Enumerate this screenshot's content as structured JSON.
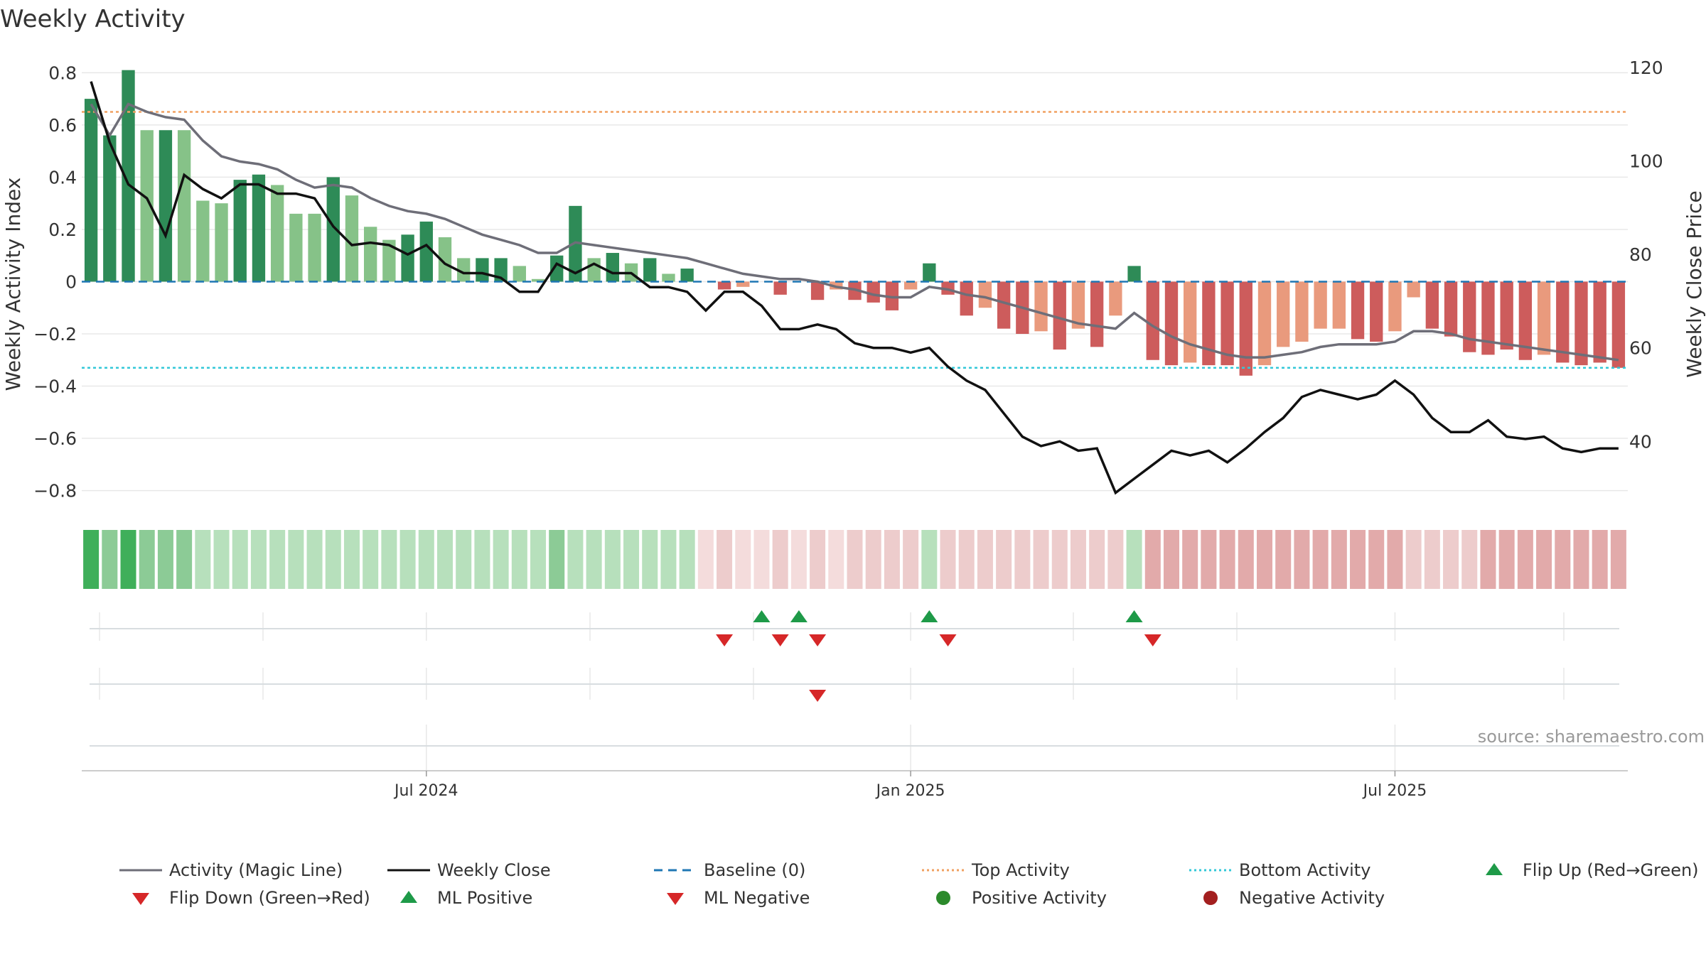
{
  "chart_data": {
    "type": "bar",
    "title": "Weekly Activity",
    "ylabel": "Weekly Activity Index",
    "y2label": "Weekly Close Price",
    "ylim": [
      -0.88,
      0.82
    ],
    "y2lim": [
      25,
      120
    ],
    "yticks": [
      0.8,
      0.6,
      0.4,
      0.2,
      0,
      -0.2,
      -0.4,
      -0.6,
      -0.8
    ],
    "ytick_labels": [
      "0.8",
      "0.6",
      "0.4",
      "0.2",
      "0",
      "−0.2",
      "−0.4",
      "−0.6",
      "−0.8"
    ],
    "y2ticks": [
      120,
      100,
      80,
      60,
      40
    ],
    "y2tick_labels": [
      "120",
      "100",
      "80",
      "60",
      "40"
    ],
    "xtick_labels": [
      {
        "label": "Jul 2024",
        "week": 18
      },
      {
        "label": "Jan 2025",
        "week": 44
      },
      {
        "label": "Jul 2025",
        "week": 70
      }
    ],
    "weeks": 83,
    "activity": [
      0.7,
      0.56,
      0.81,
      0.58,
      0.58,
      0.58,
      0.31,
      0.3,
      0.39,
      0.41,
      0.37,
      0.26,
      0.26,
      0.4,
      0.33,
      0.21,
      0.16,
      0.18,
      0.23,
      0.17,
      0.09,
      0.09,
      0.09,
      0.06,
      0.01,
      0.1,
      0.29,
      0.09,
      0.11,
      0.07,
      0.09,
      0.03,
      0.05,
      0,
      -0.03,
      -0.02,
      0,
      -0.05,
      0,
      -0.07,
      -0.03,
      -0.07,
      -0.08,
      -0.11,
      -0.03,
      0.07,
      -0.05,
      -0.13,
      -0.1,
      -0.18,
      -0.2,
      -0.19,
      -0.26,
      -0.18,
      -0.25,
      -0.13,
      0.06,
      -0.3,
      -0.32,
      -0.31,
      -0.32,
      -0.32,
      -0.36,
      -0.32,
      -0.25,
      -0.23,
      -0.18,
      -0.18,
      -0.22,
      -0.23,
      -0.19,
      -0.06,
      -0.18,
      -0.21,
      -0.27,
      -0.28,
      -0.26,
      -0.3,
      -0.28,
      -0.31,
      -0.32,
      -0.31,
      -0.33
    ],
    "activity_strength": [
      3,
      2,
      3,
      1,
      3,
      1,
      1,
      1,
      3,
      3,
      1,
      1,
      1,
      3,
      1,
      1,
      1,
      3,
      3,
      1,
      1,
      3,
      3,
      1,
      1,
      3,
      3,
      1,
      3,
      1,
      3,
      1,
      3,
      0,
      3,
      1,
      0,
      3,
      0,
      3,
      1,
      3,
      3,
      3,
      1,
      3,
      3,
      3,
      1,
      3,
      3,
      1,
      3,
      1,
      3,
      1,
      3,
      3,
      3,
      1,
      3,
      3,
      3,
      1,
      1,
      1,
      1,
      1,
      3,
      3,
      1,
      1,
      3,
      3,
      3,
      3,
      3,
      3,
      1,
      3,
      3,
      3,
      3
    ],
    "activity_line": [
      0.68,
      0.56,
      0.68,
      0.65,
      0.63,
      0.62,
      0.54,
      0.48,
      0.46,
      0.45,
      0.43,
      0.39,
      0.36,
      0.37,
      0.36,
      0.32,
      0.29,
      0.27,
      0.26,
      0.24,
      0.21,
      0.18,
      0.16,
      0.14,
      0.11,
      0.11,
      0.15,
      0.14,
      0.13,
      0.12,
      0.11,
      0.1,
      0.09,
      0.07,
      0.05,
      0.03,
      0.02,
      0.01,
      0.01,
      0,
      -0.02,
      -0.03,
      -0.05,
      -0.06,
      -0.06,
      -0.02,
      -0.03,
      -0.05,
      -0.06,
      -0.08,
      -0.1,
      -0.12,
      -0.14,
      -0.16,
      -0.17,
      -0.18,
      -0.12,
      -0.17,
      -0.21,
      -0.24,
      -0.26,
      -0.28,
      -0.29,
      -0.29,
      -0.28,
      -0.27,
      -0.25,
      -0.24,
      -0.24,
      -0.24,
      -0.23,
      -0.19,
      -0.19,
      -0.2,
      -0.22,
      -0.23,
      -0.24,
      -0.25,
      -0.26,
      -0.27,
      -0.28,
      -0.29,
      -0.3
    ],
    "weekly_close": [
      117,
      104,
      95,
      92,
      84,
      97,
      94,
      92,
      95,
      95,
      93,
      93,
      92,
      86,
      82,
      82.5,
      82,
      80,
      82,
      78,
      76,
      76,
      75,
      72,
      72,
      78,
      76,
      78,
      76,
      76,
      73,
      73,
      72,
      68,
      72,
      72,
      69,
      64,
      64,
      65,
      64,
      61,
      60,
      60,
      59,
      60,
      56,
      53,
      51,
      46,
      41,
      39,
      40,
      38,
      38.5,
      29,
      32,
      35,
      38,
      37,
      38,
      35.5,
      38.5,
      42,
      45,
      49.5,
      51,
      50,
      49,
      50,
      53,
      50,
      45,
      42,
      42,
      44.5,
      41,
      40.5,
      41,
      38.5,
      37.7,
      38.5,
      38.5
    ],
    "heat_strength": [
      3,
      2,
      3,
      2,
      2,
      2,
      1,
      1,
      1,
      1,
      1,
      1,
      1,
      1,
      1,
      1,
      1,
      1,
      1,
      1,
      1,
      1,
      1,
      1,
      1,
      2,
      1,
      1,
      1,
      1,
      1,
      1,
      1,
      0,
      1,
      0,
      0,
      1,
      0,
      1,
      0,
      1,
      1,
      1,
      1,
      1,
      1,
      1,
      1,
      1,
      1,
      1,
      1,
      1,
      1,
      1,
      1,
      2,
      2,
      2,
      2,
      2,
      2,
      2,
      2,
      2,
      2,
      2,
      2,
      2,
      2,
      1,
      1,
      1,
      1,
      2,
      2,
      2,
      2,
      2,
      2,
      2,
      2
    ],
    "top_activity": 0.65,
    "bottom_activity": -0.33,
    "baseline": 0,
    "flip_up_weeks": [
      36,
      38,
      45,
      56
    ],
    "flip_down_weeks": [
      34,
      37,
      39,
      46,
      57
    ],
    "ml_negative_weeks": [
      39
    ],
    "source": "source: sharemaestro.com",
    "legend": [
      {
        "label": "Activity (Magic Line)",
        "kind": "line",
        "color": "#6e6e78",
        "dash": ""
      },
      {
        "label": "Weekly Close",
        "kind": "line",
        "color": "#111111",
        "dash": ""
      },
      {
        "label": "Baseline (0)",
        "kind": "line",
        "color": "#1f77b4",
        "dash": "12 8"
      },
      {
        "label": "Top Activity",
        "kind": "line",
        "color": "#f0a060",
        "dash": "3 4"
      },
      {
        "label": "Bottom Activity",
        "kind": "line",
        "color": "#33c8d8",
        "dash": "3 4"
      },
      {
        "label": "Flip Up (Red→Green)",
        "kind": "tri-up",
        "color": "#1e9a48"
      },
      {
        "label": "Flip Down (Green→Red)",
        "kind": "tri-down",
        "color": "#d62728"
      },
      {
        "label": "ML Positive",
        "kind": "tri-up",
        "color": "#1e9a48"
      },
      {
        "label": "ML Negative",
        "kind": "tri-down",
        "color": "#d62728"
      },
      {
        "label": "Positive Activity",
        "kind": "dot",
        "color": "#2b8a2b"
      },
      {
        "label": "Negative Activity",
        "kind": "dot",
        "color": "#a31f1f"
      }
    ],
    "colors": {
      "pos_strong": "#2e8b57",
      "pos_light": "#86c288",
      "neg_strong": "#cd5c5c",
      "neg_light": "#e99a7d",
      "heat_pos": [
        "#d2ecd4",
        "#b7e0bc",
        "#8ccb96",
        "#3faf5a"
      ],
      "heat_neg": [
        "#f4dcdc",
        "#edcccc",
        "#e2aaaa",
        "#d89595"
      ],
      "grid": "#e8e8e8"
    }
  }
}
